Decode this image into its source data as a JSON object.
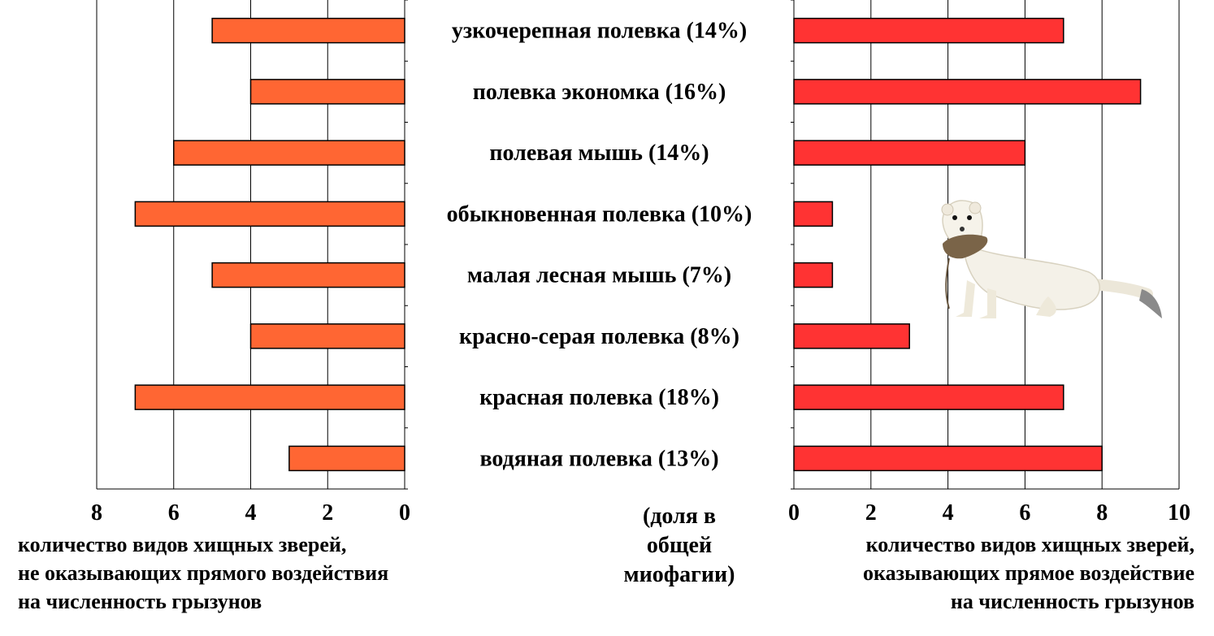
{
  "chart_data": {
    "type": "bar",
    "orientation": "horizontal-mirrored",
    "categories": [
      "узкочерепная полевка  (14%)",
      "полевка экономка  (16%)",
      "полевая мышь (14%)",
      "обыкновенная полевка (10%)",
      "малая лесная мышь (7%)",
      "красно-серая полевка (8%)",
      "красная полевка (18%)",
      "водяная полевка (13%)"
    ],
    "series": [
      {
        "values": [
          5,
          4,
          6,
          7,
          5,
          4,
          7,
          3
        ],
        "color": "#ff6633"
      },
      {
        "values": [
          7,
          9,
          6,
          1,
          1,
          3,
          7,
          8
        ],
        "color": "#ff3333"
      }
    ],
    "left_axis": {
      "range": [
        0,
        8
      ],
      "ticks": [
        "8",
        "6",
        "4",
        "2",
        "0"
      ],
      "title_lines": [
        "количество видов хищных зверей,",
        "не оказывающих  прямого воздействия",
        "на численность  грызунов"
      ]
    },
    "right_axis": {
      "range": [
        0,
        10
      ],
      "ticks": [
        "0",
        "2",
        "4",
        "6",
        "8",
        "10"
      ],
      "title_lines": [
        "количество видов хищных зверей,",
        "оказывающих прямое воздействие",
        "на численность  грызунов"
      ]
    },
    "center_note_lines": [
      "(доля в",
      "общей",
      "миофагии)"
    ],
    "grid": true
  }
}
